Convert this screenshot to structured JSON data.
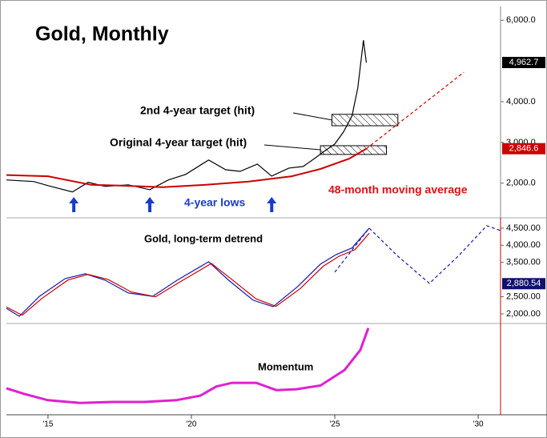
{
  "chart_data": [
    {
      "type": "line",
      "title": "Gold, Monthly",
      "xlim": [
        2013.55,
        2030.78
      ],
      "ylim": [
        1150,
        6340
      ],
      "yticks": [
        {
          "value": 2000,
          "label": "2,000.0"
        },
        {
          "value": 3000,
          "label": "3,000.0"
        },
        {
          "value": 4000,
          "label": "4,000.0"
        },
        {
          "value": 6000,
          "label": "6,000.0"
        }
      ],
      "series": [
        {
          "color": "#000000",
          "dash": false,
          "x": [
            2013.55,
            2014,
            2014.5,
            2015,
            2015.85,
            2016.4,
            2017,
            2017.8,
            2018.55,
            2019.2,
            2019.8,
            2020.6,
            2021.2,
            2021.7,
            2022.3,
            2022.8,
            2023.4,
            2023.9,
            2024.3,
            2024.6,
            2025,
            2025.3,
            2025.6,
            2025.8,
            2026,
            2026.1
          ],
          "values": [
            2080,
            2060,
            2040,
            1940,
            1785,
            2020,
            1920,
            1960,
            1840,
            2080,
            2215,
            2570,
            2330,
            2290,
            2470,
            2175,
            2370,
            2410,
            2610,
            2765,
            2960,
            3255,
            3650,
            4330,
            5510,
            4962.7
          ]
        },
        {
          "color": "#cc0000",
          "dash": false,
          "x": [
            2013.55,
            2015,
            2016.5,
            2017.5,
            2019,
            2020.5,
            2022,
            2023.5,
            2024.5,
            2025.5,
            2026.1
          ],
          "values": [
            2200,
            2170,
            1960,
            1940,
            1900,
            1960,
            2040,
            2170,
            2350,
            2600,
            2846.6
          ]
        },
        {
          "color": "#cc0000",
          "dash": true,
          "x": [
            2026.1,
            2029.5
          ],
          "values": [
            2846.6,
            4725
          ]
        }
      ],
      "last_values": [
        {
          "value": 4962.7,
          "label": "4,962.7",
          "color": "#000000"
        },
        {
          "value": 2846.6,
          "label": "2,846.6",
          "color": "#cc0000"
        }
      ],
      "target_zones": [
        {
          "x": [
            2024.9,
            2027.2
          ],
          "y": [
            3410,
            3690
          ]
        },
        {
          "x": [
            2024.5,
            2026.8
          ],
          "y": [
            2706,
            2920
          ]
        }
      ],
      "annotations": [
        "2nd 4-year target (hit)",
        "Original 4-year target (hit)",
        "4-year lows",
        "48-month moving average"
      ],
      "lows_x": [
        2015.9,
        2018.55,
        2022.8
      ]
    },
    {
      "type": "line",
      "title": "Gold, long-term detrend",
      "xlim": [
        2013.55,
        2030.78
      ],
      "ylim": [
        1720,
        4800
      ],
      "yticks": [
        {
          "value": 2000,
          "label": "2,000.00"
        },
        {
          "value": 2500,
          "label": "2,500.00"
        },
        {
          "value": 3500,
          "label": "3,500.00"
        },
        {
          "value": 4000,
          "label": "4,000.00"
        },
        {
          "value": 4500,
          "label": "4,500.00"
        }
      ],
      "series": [
        {
          "color": "#1a1aaa",
          "dash": false,
          "x": [
            2013.55,
            2014,
            2014.7,
            2015.6,
            2016.3,
            2017,
            2017.8,
            2018.65,
            2019.5,
            2020.6,
            2021.3,
            2022.15,
            2022.85,
            2023.7,
            2024.5,
            2025.05,
            2025.6,
            2026.2
          ],
          "values": [
            2160,
            1930,
            2510,
            3030,
            3170,
            2980,
            2610,
            2510,
            2980,
            3520,
            2980,
            2400,
            2210,
            2790,
            3450,
            3730,
            3920,
            4500
          ]
        },
        {
          "color": "#cc0000",
          "dash": false,
          "x": [
            2013.55,
            2014.1,
            2014.8,
            2015.7,
            2016.4,
            2017.1,
            2017.9,
            2018.75,
            2019.6,
            2020.7,
            2021.4,
            2022.25,
            2022.95,
            2023.8,
            2024.6,
            2025.15,
            2025.7,
            2026.2
          ],
          "values": [
            2200,
            1960,
            2460,
            2990,
            3150,
            3000,
            2640,
            2500,
            2930,
            3470,
            3010,
            2440,
            2220,
            2740,
            3390,
            3680,
            3870,
            4350
          ]
        },
        {
          "color": "#1a1aaa",
          "dash": true,
          "x": [
            2025,
            2026.2,
            2027.2,
            2028.3,
            2029.3,
            2030.3,
            2030.78
          ],
          "values": [
            3215,
            4500,
            3680,
            2890,
            3680,
            4570,
            4430
          ]
        }
      ],
      "last_values": [
        {
          "value": 2880.54,
          "label": "2,880.54",
          "color": "#101070"
        }
      ]
    },
    {
      "type": "line",
      "title": "Momentum",
      "xlim": [
        2013.55,
        2030.78
      ],
      "ylim": [
        0,
        100
      ],
      "xticks": [
        {
          "value": 2015,
          "label": "'15"
        },
        {
          "value": 2020,
          "label": "'20"
        },
        {
          "value": 2025,
          "label": "'25"
        },
        {
          "value": 2030,
          "label": "'30"
        }
      ],
      "series": [
        {
          "color": "#e020d0",
          "dash": false,
          "x": [
            2013.55,
            2014.16,
            2015,
            2016.12,
            2017.23,
            2018.35,
            2019.47,
            2020.31,
            2020.87,
            2021.42,
            2022.26,
            2022.96,
            2023.66,
            2024.5,
            2025.34,
            2025.89,
            2026.17
          ],
          "values": [
            29,
            23,
            16,
            13,
            14,
            14,
            16,
            21,
            31,
            35,
            35,
            27,
            28,
            32,
            49,
            71,
            95
          ]
        }
      ]
    }
  ]
}
